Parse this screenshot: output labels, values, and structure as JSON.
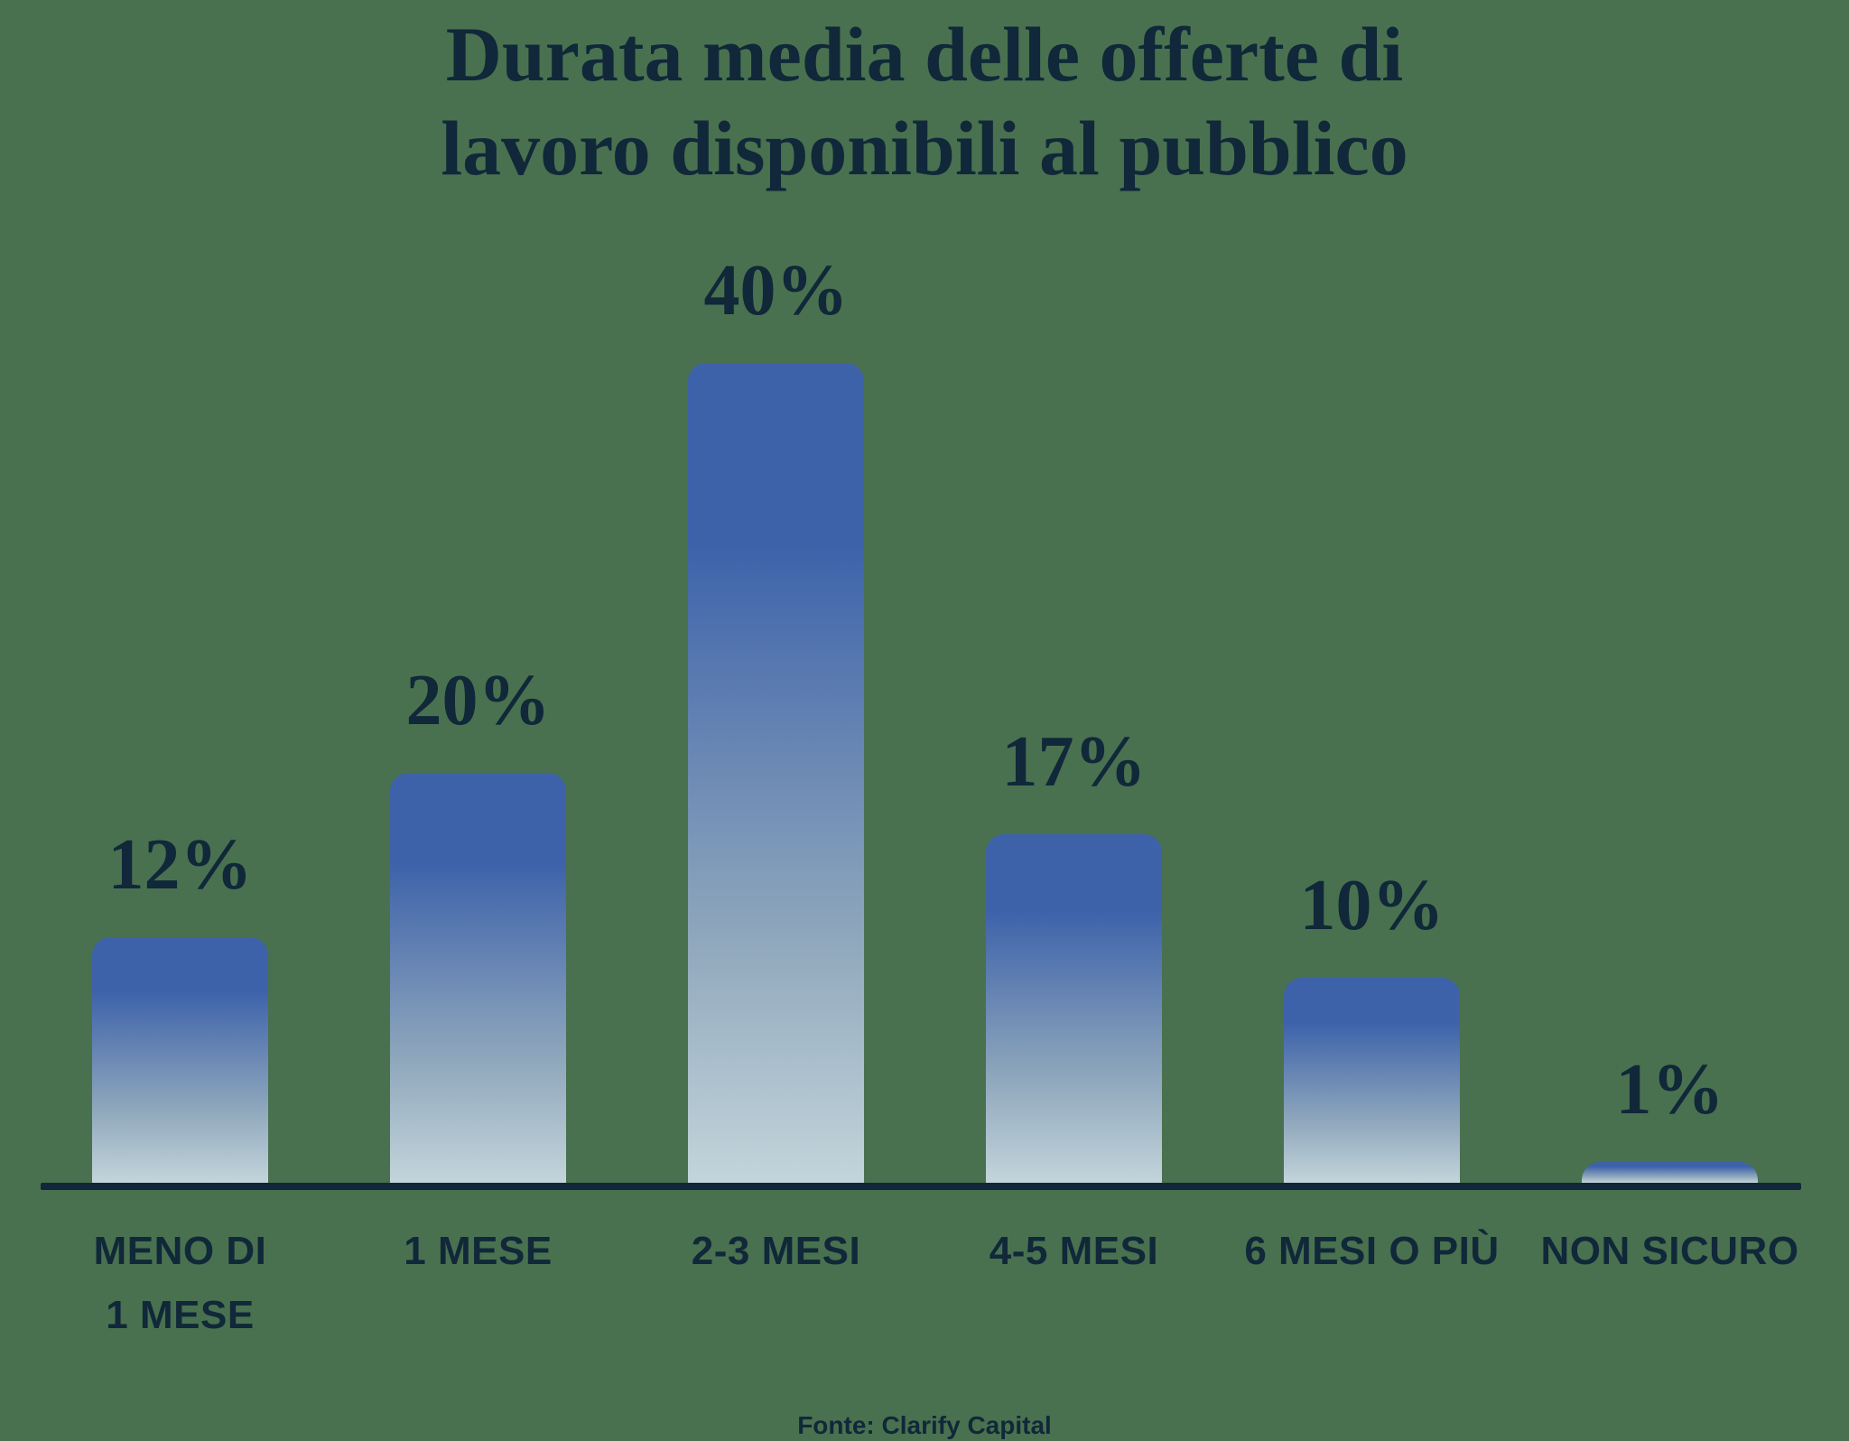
{
  "title": {
    "lines": [
      "Durata media delle offerte di",
      "lavoro disponibili al pubblico"
    ]
  },
  "source": {
    "label": "Fonte: Clarify Capital"
  },
  "chart_data": {
    "type": "bar",
    "title": "Durata media delle offerte di lavoro disponibili al pubblico",
    "categories": [
      "MENO DI\n1 MESE",
      "1 MESE",
      "2-3 MESI",
      "4-5 MESI",
      "6 MESI O PIÙ",
      "NON SICURO"
    ],
    "values": [
      12,
      20,
      40,
      17,
      10,
      1
    ],
    "value_labels": [
      "12%",
      "20%",
      "40%",
      "17%",
      "10%",
      "1%"
    ],
    "xlabel": "",
    "ylabel": "",
    "ylim": [
      0,
      40
    ],
    "grid": false,
    "legend": false,
    "source": "Fonte: Clarify Capital",
    "colors": {
      "background": "#49714F",
      "text": "#102839",
      "axis": "#102839",
      "bar_top": "#3D62AA",
      "bar_mid": "#8FA7BC",
      "bar_bottom": "#C3D5DB"
    }
  }
}
